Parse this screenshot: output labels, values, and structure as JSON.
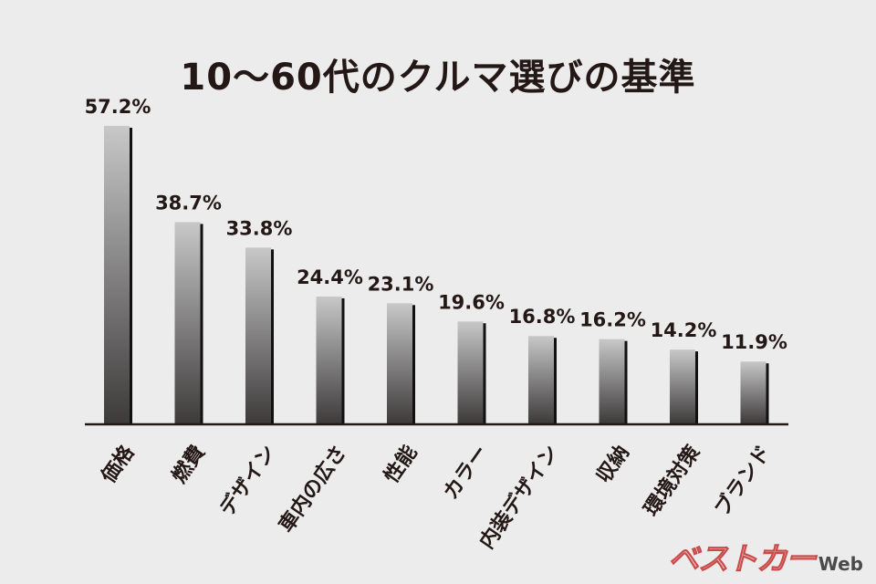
{
  "colors": {
    "background": "#ececec",
    "text": "#231815",
    "bar_top": "#c8c8c8",
    "bar_bottom": "#3d3a3a",
    "bar_shadow": "#111111",
    "axis": "#231815"
  },
  "logo": {
    "main": "ベストカー",
    "suffix": "Web"
  },
  "chart_data": {
    "type": "bar",
    "title": "10〜60代のクルマ選びの基準",
    "xlabel": "",
    "ylabel": "",
    "ylim": [
      0,
      60
    ],
    "grid": false,
    "categories": [
      "価格",
      "燃費",
      "デザイン",
      "車内の広さ",
      "性能",
      "カラー",
      "内装デザイン",
      "収納",
      "環境対策",
      "ブランド"
    ],
    "values": [
      57.2,
      38.7,
      33.8,
      24.4,
      23.1,
      19.6,
      16.8,
      16.2,
      14.2,
      11.9
    ],
    "value_labels": [
      "57.2%",
      "38.7%",
      "33.8%",
      "24.4%",
      "23.1%",
      "19.6%",
      "16.8%",
      "16.2%",
      "14.2%",
      "11.9%"
    ]
  }
}
